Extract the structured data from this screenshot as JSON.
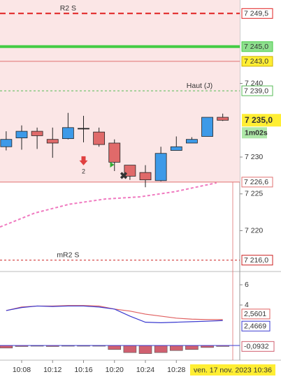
{
  "chart_data": [
    {
      "type": "candlestick",
      "x": [
        6,
        8,
        10,
        12,
        14,
        16,
        18,
        20,
        22,
        24,
        26,
        28,
        30,
        32,
        34
      ],
      "open": [
        7231.4,
        7232.6,
        7233.5,
        7232.4,
        7232.5,
        7233.9,
        7233.4,
        7231.9,
        7228.9,
        7227.9,
        7226.8,
        7230.9,
        7231.9,
        7232.8,
        7235.4
      ],
      "high": [
        7233.5,
        7234.3,
        7234.0,
        7234.0,
        7236.0,
        7235.6,
        7234.0,
        7232.4,
        7228.9,
        7228.9,
        7231.4,
        7232.8,
        7232.7,
        7235.4,
        7235.9
      ],
      "low": [
        7230.9,
        7231.0,
        7231.1,
        7229.9,
        7232.4,
        7232.0,
        7231.4,
        7228.1,
        7226.9,
        7225.9,
        7226.7,
        7230.9,
        7231.9,
        7232.8,
        7234.9
      ],
      "close": [
        7232.4,
        7233.5,
        7232.9,
        7231.9,
        7234.0,
        7233.9,
        7231.7,
        7229.3,
        7227.4,
        7226.9,
        7230.5,
        7231.4,
        7232.4,
        7235.4,
        7235.0
      ],
      "up_color": "#3d9ae8",
      "down_color": "#e06a6a",
      "xlim": [
        5.2,
        36.2
      ],
      "ylim": [
        7214.55,
        7251.33
      ],
      "yticks": [
        {
          "value": 7240,
          "label": "7 240"
        },
        {
          "value": 7230,
          "label": "7 230"
        },
        {
          "value": 7225,
          "label": "7 225"
        },
        {
          "value": 7220,
          "label": "7 220"
        }
      ],
      "lines": [
        {
          "name": "R2 S",
          "value": 7249.5,
          "label": "7 249,5",
          "color": "#e02020",
          "style": "dashed",
          "name_x": 14
        },
        {
          "value": 7245.0,
          "label": "7 245,0",
          "color": "#44cc44",
          "style": "solid"
        },
        {
          "value": 7243.0,
          "label": "7 243,0",
          "color": "#e07070",
          "style": "solid"
        },
        {
          "name": "Haut (J)",
          "value": 7239.0,
          "label": "7 239,0",
          "color": "#55bb55",
          "style": "dotted",
          "name_x": 31
        },
        {
          "value": 7226.6,
          "label": "7 226,6",
          "color": "#e07070",
          "style": "solid"
        },
        {
          "name": "mR2 S",
          "value": 7216.0,
          "label": "7 216,0",
          "color": "#cc2020",
          "style": "dotted",
          "name_x": 14
        }
      ],
      "ma": {
        "x": [
          5.2,
          9.7,
          14.2,
          18.8,
          23.3,
          27.8,
          33.2
        ],
        "values": [
          7220.5,
          7222.4,
          7223.6,
          7224.3,
          7224.6,
          7225.3,
          7226.5
        ],
        "color": "#f07ac0"
      },
      "last": {
        "value": 7235.0,
        "label": "7 235,0"
      },
      "countdown": "1m02s",
      "annotation": {
        "text": "2",
        "x": 16,
        "y": 7228.4
      }
    },
    {
      "type": "line",
      "x": [
        6,
        8,
        10,
        12,
        14,
        16,
        18,
        20,
        22,
        24,
        26,
        28,
        30,
        32,
        34
      ],
      "series": [
        {
          "color": "#e06060",
          "values": [
            3.45,
            3.8,
            3.9,
            3.9,
            3.95,
            3.95,
            3.9,
            3.6,
            3.4,
            3.1,
            2.9,
            2.7,
            2.6,
            2.56,
            2.5601
          ],
          "last_label": "2,5601"
        },
        {
          "color": "#3a3ad0",
          "values": [
            3.45,
            3.75,
            3.9,
            3.85,
            3.9,
            3.9,
            3.8,
            3.6,
            2.9,
            2.3,
            2.25,
            2.3,
            2.35,
            2.4,
            2.4669
          ],
          "last_label": "2,4669"
        }
      ],
      "bars": {
        "color": "#d06070",
        "values": [
          -0.25,
          -0.1,
          -0.05,
          -0.1,
          -0.05,
          -0.02,
          -0.05,
          -0.4,
          -0.7,
          -0.8,
          -0.7,
          -0.5,
          -0.4,
          -0.2,
          -0.0932
        ],
        "last_label": "-0,0932"
      },
      "xlim": [
        5.2,
        36.2
      ],
      "ylim": [
        -1.38,
        7.24
      ],
      "yticks": [
        6,
        4
      ],
      "xticks": [
        {
          "value": 8,
          "label": "10:08"
        },
        {
          "value": 12,
          "label": "10:12"
        },
        {
          "value": 16,
          "label": "10:16"
        },
        {
          "value": 20,
          "label": "10:20"
        },
        {
          "value": 24,
          "label": "10:24"
        },
        {
          "value": 28,
          "label": "10:28"
        }
      ],
      "time_label": "ven. 17 nov. 2023 10:36"
    }
  ]
}
